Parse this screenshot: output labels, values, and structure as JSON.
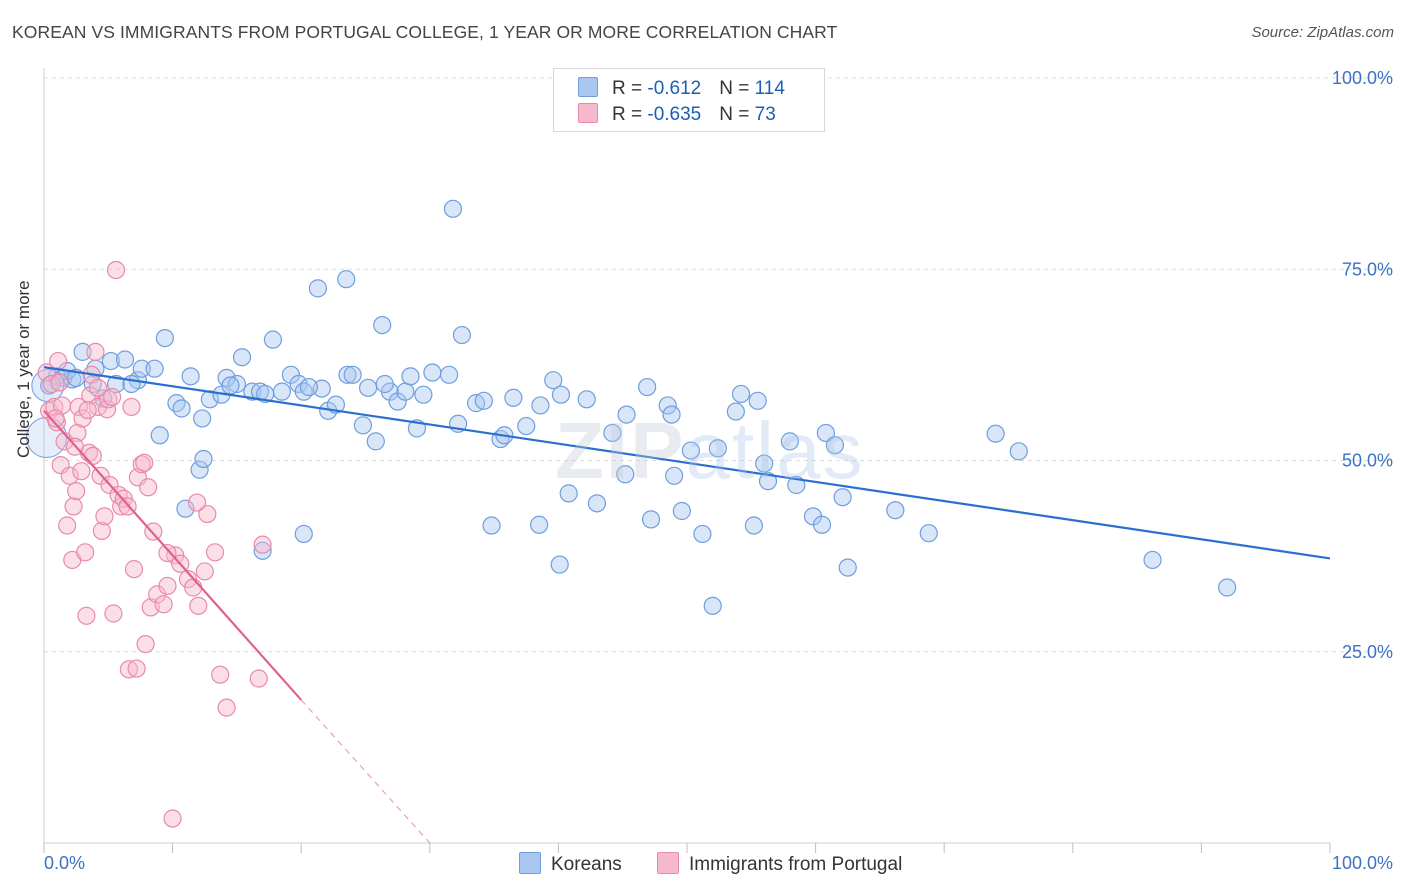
{
  "title": "KOREAN VS IMMIGRANTS FROM PORTUGAL COLLEGE, 1 YEAR OR MORE CORRELATION CHART",
  "source": "Source: ZipAtlas.com",
  "watermark": {
    "zip": "ZIP",
    "atlas": "atlas"
  },
  "legend": {
    "koreans": {
      "r_label": "R = ",
      "r_value": "-0.612",
      "n_label": "N = ",
      "n_value": "114"
    },
    "portugal": {
      "r_label": "R = ",
      "r_value": "-0.635",
      "n_label": "N = ",
      "n_value": " 73"
    }
  },
  "colors": {
    "koreans_fill": "#a9c7f0",
    "koreans_stroke": "#6f9ee0",
    "koreans_line": "#2a6fd0",
    "portugal_fill": "#f6b8cc",
    "portugal_stroke": "#e98aab",
    "portugal_line": "#e0608e",
    "axis_label": "#3a72c4"
  },
  "chart_data": {
    "type": "scatter",
    "title": "KOREAN VS IMMIGRANTS FROM PORTUGAL COLLEGE, 1 YEAR OR MORE CORRELATION CHART",
    "xlabel": "",
    "ylabel": "College, 1 year or more",
    "xlim": [
      0,
      100
    ],
    "ylim": [
      0,
      100
    ],
    "x_tick_labels": [
      "0.0%",
      "100.0%"
    ],
    "y_tick_labels": [
      "100.0%",
      "75.0%",
      "50.0%",
      "25.0%"
    ],
    "y_ticks": [
      100,
      75,
      50,
      25
    ],
    "grid": true,
    "legend_position": "top-center",
    "series": [
      {
        "name": "Koreans",
        "trend": {
          "x": [
            0,
            100
          ],
          "y": [
            62.2,
            37.2
          ]
        },
        "points": [
          [
            0.4,
            59.8
          ],
          [
            1.0,
            61.0
          ],
          [
            1.5,
            60.8
          ],
          [
            2.2,
            60.6
          ],
          [
            3.0,
            64.2
          ],
          [
            3.8,
            60.0
          ],
          [
            4.0,
            62.0
          ],
          [
            5.2,
            63.0
          ],
          [
            5.6,
            60.0
          ],
          [
            6.3,
            63.2
          ],
          [
            7.3,
            60.5
          ],
          [
            7.6,
            62.0
          ],
          [
            6.8,
            60.0
          ],
          [
            9.4,
            66.0
          ],
          [
            10.3,
            57.5
          ],
          [
            10.7,
            56.8
          ],
          [
            11.4,
            61.0
          ],
          [
            12.1,
            48.8
          ],
          [
            12.4,
            50.2
          ],
          [
            12.9,
            58.0
          ],
          [
            13.8,
            58.6
          ],
          [
            14.2,
            60.8
          ],
          [
            15.0,
            60.0
          ],
          [
            15.4,
            63.5
          ],
          [
            16.2,
            59.0
          ],
          [
            16.8,
            59.0
          ],
          [
            17.2,
            58.7
          ],
          [
            17.8,
            65.8
          ],
          [
            18.5,
            59.0
          ],
          [
            19.2,
            61.2
          ],
          [
            19.8,
            60.0
          ],
          [
            20.2,
            59.0
          ],
          [
            21.3,
            72.5
          ],
          [
            21.6,
            59.4
          ],
          [
            22.1,
            56.5
          ],
          [
            22.7,
            57.3
          ],
          [
            23.6,
            61.2
          ],
          [
            24.0,
            61.2
          ],
          [
            24.8,
            54.6
          ],
          [
            25.2,
            59.5
          ],
          [
            25.8,
            52.5
          ],
          [
            26.3,
            67.7
          ],
          [
            26.9,
            59.0
          ],
          [
            27.5,
            57.7
          ],
          [
            28.1,
            59.0
          ],
          [
            28.5,
            61.0
          ],
          [
            29.0,
            54.2
          ],
          [
            29.5,
            58.6
          ],
          [
            30.2,
            61.5
          ],
          [
            31.5,
            61.2
          ],
          [
            32.2,
            54.8
          ],
          [
            32.5,
            66.4
          ],
          [
            33.6,
            57.5
          ],
          [
            34.2,
            57.8
          ],
          [
            35.5,
            52.8
          ],
          [
            35.8,
            53.3
          ],
          [
            36.5,
            58.2
          ],
          [
            37.5,
            54.5
          ],
          [
            38.6,
            57.2
          ],
          [
            39.6,
            60.5
          ],
          [
            40.2,
            58.6
          ],
          [
            40.8,
            45.7
          ],
          [
            42.2,
            58.0
          ],
          [
            43.0,
            44.4
          ],
          [
            44.2,
            53.6
          ],
          [
            45.2,
            48.2
          ],
          [
            46.9,
            59.6
          ],
          [
            47.2,
            42.3
          ],
          [
            48.5,
            57.2
          ],
          [
            48.8,
            56.0
          ],
          [
            49.0,
            48.0
          ],
          [
            49.6,
            43.4
          ],
          [
            50.3,
            51.3
          ],
          [
            51.2,
            40.4
          ],
          [
            52.4,
            51.6
          ],
          [
            53.8,
            56.4
          ],
          [
            54.2,
            58.7
          ],
          [
            55.5,
            57.8
          ],
          [
            56.0,
            49.6
          ],
          [
            56.3,
            47.3
          ],
          [
            58.0,
            52.5
          ],
          [
            58.5,
            46.8
          ],
          [
            59.8,
            42.7
          ],
          [
            60.5,
            41.6
          ],
          [
            60.8,
            53.6
          ],
          [
            61.5,
            52.0
          ],
          [
            62.1,
            45.2
          ],
          [
            62.5,
            36.0
          ],
          [
            66.2,
            43.5
          ],
          [
            68.8,
            40.5
          ],
          [
            74.0,
            53.5
          ],
          [
            75.8,
            51.2
          ],
          [
            86.2,
            37.0
          ],
          [
            92.0,
            33.4
          ],
          [
            52.0,
            31.0
          ],
          [
            55.2,
            41.5
          ],
          [
            23.5,
            73.7
          ],
          [
            20.2,
            40.4
          ],
          [
            17.0,
            38.2
          ],
          [
            38.5,
            41.6
          ],
          [
            40.1,
            36.4
          ],
          [
            31.8,
            82.9
          ],
          [
            1.8,
            61.7
          ],
          [
            2.5,
            60.8
          ],
          [
            4.6,
            58.1
          ],
          [
            8.6,
            62.0
          ],
          [
            9.0,
            53.3
          ],
          [
            11.0,
            43.7
          ],
          [
            12.3,
            55.5
          ],
          [
            14.5,
            59.8
          ],
          [
            34.8,
            41.5
          ],
          [
            20.6,
            59.6
          ],
          [
            26.5,
            60.0
          ],
          [
            45.3,
            56.0
          ]
        ]
      },
      {
        "name": "Immigrants from Portugal",
        "trend": {
          "x": [
            0,
            20.0
          ],
          "y": [
            56.5,
            18.7
          ],
          "dashed_to": {
            "x": 30.0,
            "y": 0
          }
        },
        "points": [
          [
            0.2,
            61.5
          ],
          [
            0.4,
            56.5
          ],
          [
            0.6,
            60.0
          ],
          [
            0.8,
            57.0
          ],
          [
            1.0,
            55.0
          ],
          [
            1.1,
            63.0
          ],
          [
            1.3,
            49.4
          ],
          [
            1.4,
            57.2
          ],
          [
            1.6,
            52.5
          ],
          [
            1.8,
            41.5
          ],
          [
            2.0,
            48.0
          ],
          [
            2.2,
            37.0
          ],
          [
            2.3,
            44.0
          ],
          [
            2.5,
            46.0
          ],
          [
            2.6,
            53.6
          ],
          [
            2.7,
            57.0
          ],
          [
            2.9,
            48.6
          ],
          [
            3.0,
            55.5
          ],
          [
            3.2,
            38.0
          ],
          [
            3.3,
            29.7
          ],
          [
            3.5,
            51.0
          ],
          [
            3.6,
            58.5
          ],
          [
            3.7,
            61.2
          ],
          [
            3.8,
            50.6
          ],
          [
            4.0,
            64.2
          ],
          [
            4.2,
            57.0
          ],
          [
            4.4,
            48.0
          ],
          [
            4.5,
            40.8
          ],
          [
            4.7,
            42.7
          ],
          [
            4.9,
            56.7
          ],
          [
            5.1,
            46.8
          ],
          [
            5.4,
            30.0
          ],
          [
            5.6,
            74.9
          ],
          [
            5.8,
            45.5
          ],
          [
            6.0,
            44.0
          ],
          [
            6.2,
            45.0
          ],
          [
            6.6,
            22.7
          ],
          [
            7.0,
            35.8
          ],
          [
            7.3,
            47.8
          ],
          [
            7.6,
            49.5
          ],
          [
            7.9,
            26.0
          ],
          [
            8.1,
            46.5
          ],
          [
            8.3,
            30.8
          ],
          [
            8.5,
            40.7
          ],
          [
            8.8,
            32.5
          ],
          [
            9.3,
            31.2
          ],
          [
            9.6,
            33.6
          ],
          [
            10.2,
            37.6
          ],
          [
            10.6,
            36.5
          ],
          [
            11.2,
            34.5
          ],
          [
            11.6,
            33.4
          ],
          [
            12.0,
            31.0
          ],
          [
            12.7,
            43.0
          ],
          [
            13.3,
            38.0
          ],
          [
            13.7,
            22.0
          ],
          [
            14.2,
            17.7
          ],
          [
            16.7,
            21.5
          ],
          [
            17.0,
            39.0
          ],
          [
            7.8,
            49.7
          ],
          [
            6.5,
            44.0
          ],
          [
            5.0,
            58.0
          ],
          [
            4.2,
            59.5
          ],
          [
            2.4,
            51.8
          ],
          [
            1.2,
            60.2
          ],
          [
            0.9,
            55.5
          ],
          [
            3.4,
            56.6
          ],
          [
            7.2,
            22.8
          ],
          [
            10.0,
            3.2
          ],
          [
            5.3,
            58.3
          ],
          [
            6.8,
            57.0
          ],
          [
            9.6,
            37.9
          ],
          [
            11.9,
            44.5
          ],
          [
            12.5,
            35.5
          ]
        ]
      }
    ]
  }
}
